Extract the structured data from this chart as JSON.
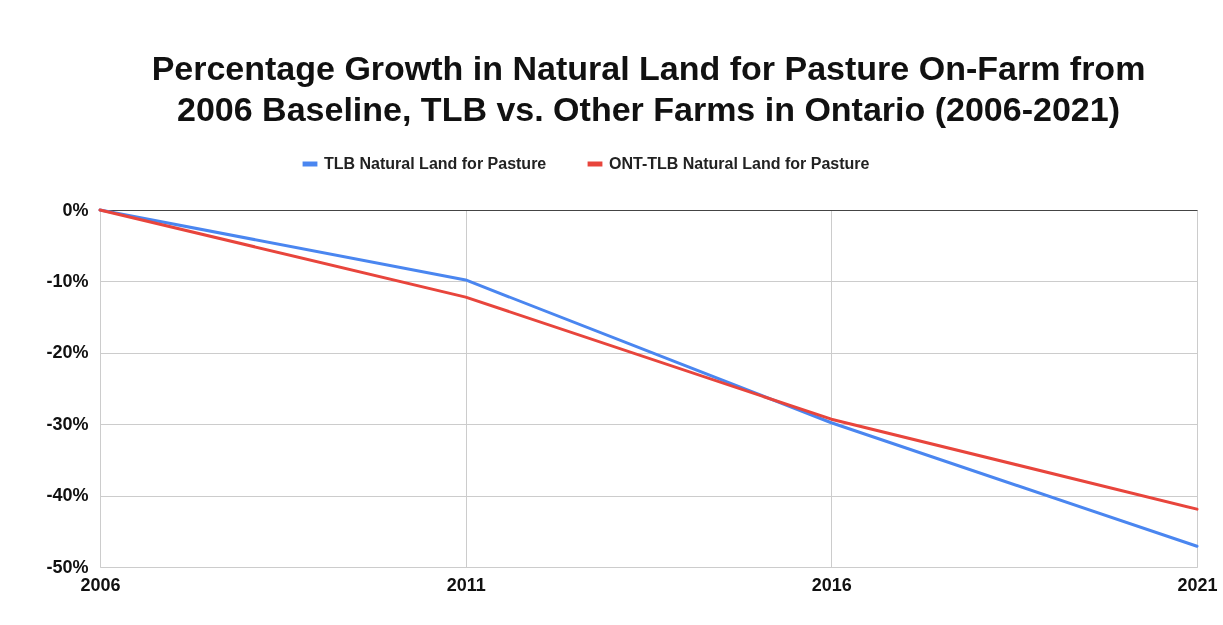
{
  "chart_data": {
    "type": "line",
    "title": "Percentage Growth in Natural Land for Pasture On-Farm from 2006 Baseline, TLB vs. Other Farms in Ontario (2006-2021)",
    "x": [
      2006,
      2011,
      2016,
      2021
    ],
    "series": [
      {
        "name": "TLB Natural Land for Pasture",
        "color": "#4a86f0",
        "values": [
          0,
          -9.8,
          -29.8,
          -47.1
        ]
      },
      {
        "name": "ONT-TLB Natural Land for Pasture",
        "color": "#e8453c",
        "values": [
          0,
          -12.2,
          -29.3,
          -41.9
        ]
      }
    ],
    "xlim": [
      2006,
      2021
    ],
    "xticks": [
      2006,
      2011,
      2016,
      2021
    ],
    "ylim": [
      -50,
      0
    ],
    "yticks": [
      {
        "value": 0,
        "label": "0%"
      },
      {
        "value": -10,
        "label": "-10%"
      },
      {
        "value": -20,
        "label": "-20%"
      },
      {
        "value": -30,
        "label": "-30%"
      },
      {
        "value": -40,
        "label": "-40%"
      },
      {
        "value": -50,
        "label": "-50%"
      }
    ],
    "grid": true,
    "legend": "top"
  }
}
